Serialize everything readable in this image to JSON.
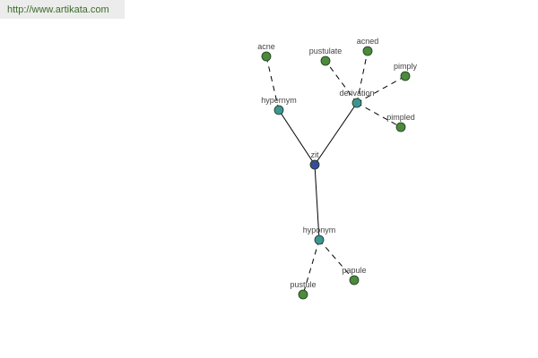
{
  "watermark": "http://www.artikata.com",
  "colors": {
    "root": "#3b4a9c",
    "relation": "#3e9494",
    "word": "#4c8a3c",
    "edge": "#000000"
  },
  "graph": {
    "nodes": [
      {
        "id": "zit",
        "label": "zit",
        "kind": "root"
      },
      {
        "id": "hypernym",
        "label": "hypernym",
        "kind": "relation"
      },
      {
        "id": "derivation",
        "label": "derivation",
        "kind": "relation"
      },
      {
        "id": "hyponym",
        "label": "hyponym",
        "kind": "relation"
      },
      {
        "id": "acne",
        "label": "acne",
        "kind": "word"
      },
      {
        "id": "pustulate",
        "label": "pustulate",
        "kind": "word"
      },
      {
        "id": "acned",
        "label": "acned",
        "kind": "word"
      },
      {
        "id": "pimply",
        "label": "pimply",
        "kind": "word"
      },
      {
        "id": "pimpled",
        "label": "pimpled",
        "kind": "word"
      },
      {
        "id": "pustule",
        "label": "pustule",
        "kind": "word"
      },
      {
        "id": "papule",
        "label": "papule",
        "kind": "word"
      }
    ],
    "edges": [
      {
        "from": "zit",
        "to": "hypernym",
        "style": "solid"
      },
      {
        "from": "zit",
        "to": "derivation",
        "style": "solid"
      },
      {
        "from": "zit",
        "to": "hyponym",
        "style": "solid"
      },
      {
        "from": "hypernym",
        "to": "acne",
        "style": "dashed"
      },
      {
        "from": "derivation",
        "to": "pustulate",
        "style": "dashed"
      },
      {
        "from": "derivation",
        "to": "acned",
        "style": "dashed"
      },
      {
        "from": "derivation",
        "to": "pimply",
        "style": "dashed"
      },
      {
        "from": "derivation",
        "to": "pimpled",
        "style": "dashed"
      },
      {
        "from": "hyponym",
        "to": "pustule",
        "style": "dashed"
      },
      {
        "from": "hyponym",
        "to": "papule",
        "style": "dashed"
      }
    ]
  }
}
